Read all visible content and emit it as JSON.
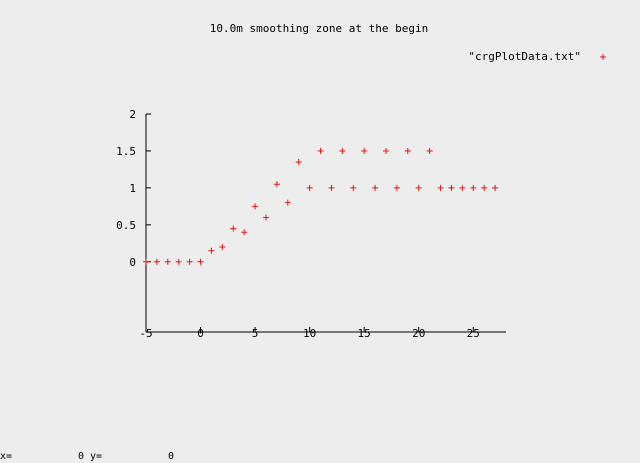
{
  "chart_data": {
    "type": "scatter",
    "title": "10.0m smoothing zone at the begin",
    "xlabel": "",
    "ylabel": "",
    "xlim": [
      -5,
      28
    ],
    "ylim": [
      -0.95,
      2
    ],
    "x_ticks": [
      -5,
      0,
      5,
      10,
      15,
      20,
      25
    ],
    "x_tick_labels": [
      "-5",
      "0",
      "5",
      "10",
      "15",
      "20",
      "25"
    ],
    "y_ticks": [
      0,
      0.5,
      1,
      1.5,
      2
    ],
    "y_tick_labels": [
      "0",
      "0.5",
      "1",
      "1.5",
      "2"
    ],
    "grid": false,
    "legend_position": "top-right",
    "series": [
      {
        "name": "\"crgPlotData.txt\"",
        "color": "#e8140f",
        "marker": "plus",
        "points": [
          [
            -5,
            0
          ],
          [
            -4,
            0
          ],
          [
            -3,
            0
          ],
          [
            -2,
            0
          ],
          [
            -1,
            0
          ],
          [
            0,
            0
          ],
          [
            1,
            0.15
          ],
          [
            2,
            0.2
          ],
          [
            3,
            0.45
          ],
          [
            4,
            0.4
          ],
          [
            5,
            0.75
          ],
          [
            6,
            0.6
          ],
          [
            7,
            1.05
          ],
          [
            8,
            0.8
          ],
          [
            9,
            1.35
          ],
          [
            10,
            1.0
          ],
          [
            11,
            1.5
          ],
          [
            12,
            1.0
          ],
          [
            13,
            1.5
          ],
          [
            14,
            1.0
          ],
          [
            15,
            1.5
          ],
          [
            16,
            1.0
          ],
          [
            17,
            1.5
          ],
          [
            18,
            1.0
          ],
          [
            19,
            1.5
          ],
          [
            20,
            1.0
          ],
          [
            21,
            1.5
          ],
          [
            22,
            1.0
          ],
          [
            23,
            1.0
          ],
          [
            24,
            1.0
          ],
          [
            25,
            1.0
          ],
          [
            26,
            1.0
          ],
          [
            27,
            1.0
          ]
        ]
      }
    ]
  },
  "status": {
    "x_label": "x=",
    "x_value": "0",
    "y_label": "y=",
    "y_value": "0"
  }
}
